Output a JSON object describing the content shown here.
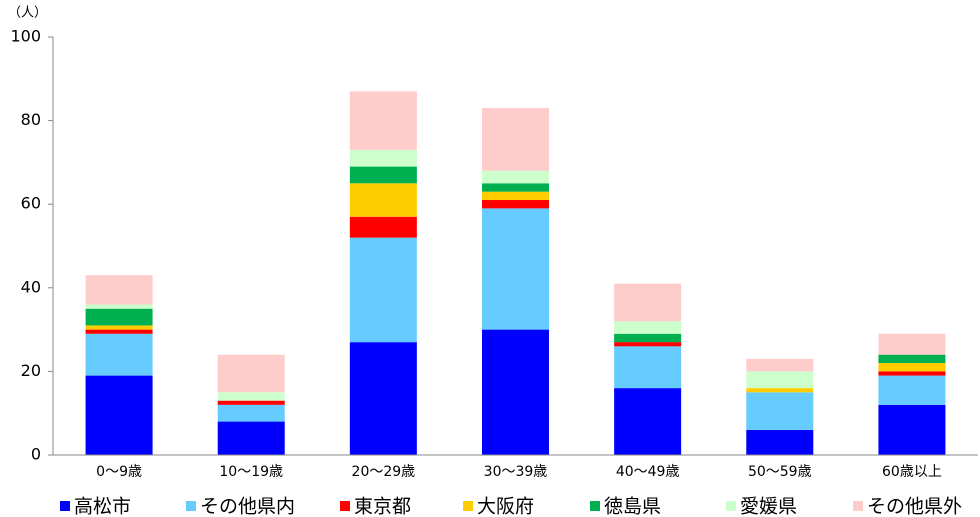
{
  "chart_data": {
    "type": "stacked_bar",
    "y_label": "（人）",
    "categories": [
      "0～9歳",
      "10～19歳",
      "20～29歳",
      "30～39歳",
      "40～49歳",
      "50～59歳",
      "60歳以上"
    ],
    "series": [
      {
        "name": "高松市",
        "color": "#0000ff",
        "values": [
          19,
          8,
          27,
          30,
          16,
          6,
          12
        ]
      },
      {
        "name": "その他県内",
        "color": "#66ccff",
        "values": [
          10,
          4,
          25,
          29,
          10,
          9,
          7
        ]
      },
      {
        "name": "東京都",
        "color": "#ff0000",
        "values": [
          1,
          1,
          5,
          2,
          1,
          0,
          1
        ]
      },
      {
        "name": "大阪府",
        "color": "#ffcc00",
        "values": [
          1,
          0,
          8,
          2,
          0,
          1,
          2
        ]
      },
      {
        "name": "徳島県",
        "color": "#00b050",
        "values": [
          4,
          0,
          4,
          2,
          2,
          0,
          2
        ]
      },
      {
        "name": "愛媛県",
        "color": "#ccffcc",
        "values": [
          1,
          2,
          4,
          3,
          3,
          4,
          0
        ]
      },
      {
        "name": "その他県外",
        "color": "#ffcccc",
        "values": [
          7,
          9,
          14,
          15,
          9,
          3,
          5
        ]
      }
    ],
    "ylim": [
      0,
      100
    ],
    "yticks": [
      0,
      20,
      40,
      60,
      80,
      100
    ],
    "grid": false
  }
}
